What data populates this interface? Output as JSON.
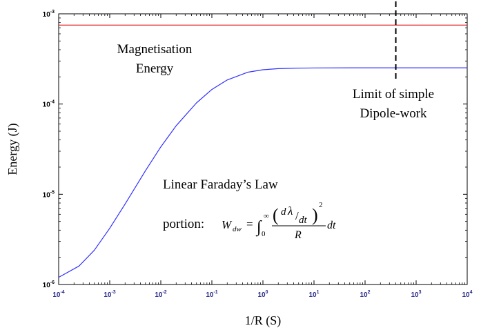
{
  "chart_data": {
    "type": "line",
    "xlabel": "1/R (S)",
    "ylabel": "Energy (J)",
    "xscale": "log",
    "yscale": "log",
    "xlim": [
      0.0001,
      10000
    ],
    "ylim": [
      1e-06,
      0.001
    ],
    "grid": false,
    "x_ticks": [
      {
        "base": "10",
        "exp": "-4",
        "value": 0.0001
      },
      {
        "base": "10",
        "exp": "-3",
        "value": 0.001
      },
      {
        "base": "10",
        "exp": "-2",
        "value": 0.01
      },
      {
        "base": "10",
        "exp": "-1",
        "value": 0.1
      },
      {
        "base": "10",
        "exp": "0",
        "value": 1
      },
      {
        "base": "10",
        "exp": "1",
        "value": 10
      },
      {
        "base": "10",
        "exp": "2",
        "value": 100
      },
      {
        "base": "10",
        "exp": "3",
        "value": 1000
      },
      {
        "base": "10",
        "exp": "4",
        "value": 10000
      }
    ],
    "y_ticks": [
      {
        "base": "10",
        "exp": "-6",
        "value": 1e-06
      },
      {
        "base": "10",
        "exp": "-5",
        "value": 1e-05
      },
      {
        "base": "10",
        "exp": "-4",
        "value": 0.0001
      },
      {
        "base": "10",
        "exp": "-3",
        "value": 0.001
      }
    ],
    "series": [
      {
        "color": "#e00000",
        "x": [
          0.0001,
          10000
        ],
        "y": [
          0.00075,
          0.00075
        ]
      },
      {
        "color": "#3030ff",
        "x": [
          0.0001,
          0.00025,
          0.0005,
          0.001,
          0.002,
          0.005,
          0.01,
          0.02,
          0.05,
          0.1,
          0.2,
          0.5,
          1,
          2,
          5,
          10,
          100,
          1000,
          10000
        ],
        "y": [
          1.2e-06,
          1.6e-06,
          2.4e-06,
          4.2e-06,
          7.8e-06,
          1.82e-05,
          3.35e-05,
          5.75e-05,
          0.000103,
          0.000145,
          0.000185,
          0.000225,
          0.00024,
          0.000247,
          0.00025,
          0.000251,
          0.000252,
          0.000252,
          0.000252
        ]
      }
    ],
    "vline": {
      "x": 400,
      "color": "#000000",
      "style": "dashed"
    },
    "annotations": {
      "magnetisation_line1": "Magnetisation",
      "magnetisation_line2": "Energy",
      "limit_line1": "Limit of simple",
      "limit_line2": "Dipole-work",
      "faraday_line1": "Linear Faraday’s Law",
      "portion_label": "portion:",
      "formula": {
        "W": "W",
        "W_sub": "dw",
        "equals": "=",
        "integral": "∫",
        "int_upper": "∞",
        "int_lower": "0",
        "paren_open": "(",
        "paren_close": ")",
        "d_top": "d",
        "lambda": "λ",
        "slash": "/",
        "dt_inner": "dt",
        "power": "2",
        "R": "R",
        "dt_outer": "dt"
      }
    }
  }
}
